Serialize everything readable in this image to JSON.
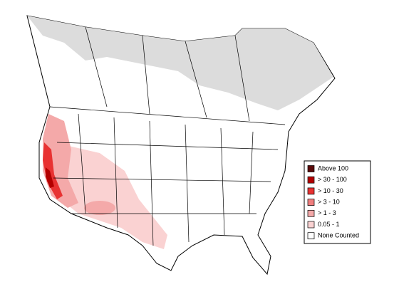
{
  "legend": {
    "items": [
      {
        "label": "Above 100",
        "color": "#5a0a0a"
      },
      {
        "label": "> 30 - 100",
        "color": "#b30000"
      },
      {
        "label": "> 10 - 30",
        "color": "#e83232"
      },
      {
        "label": "> 3 - 10",
        "color": "#f07e7e"
      },
      {
        "label": "> 1 - 3",
        "color": "#f4a9a9"
      },
      {
        "label": "0.05 - 1",
        "color": "#fad2d2"
      },
      {
        "label": "None Counted",
        "color": "#ffffff"
      }
    ]
  }
}
